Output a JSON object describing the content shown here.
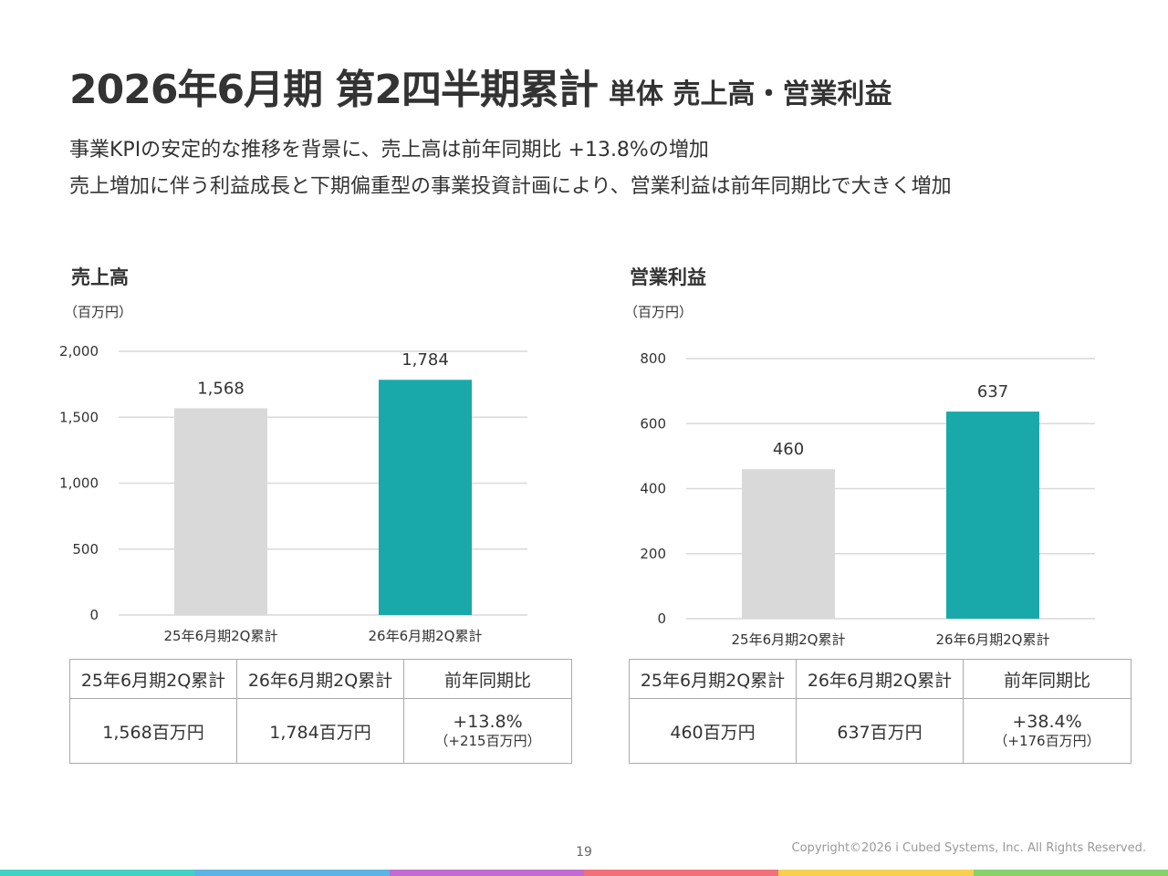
{
  "header": {
    "title": "2026年6月期 第2四半期累計",
    "subtitle": "単体 売上高・営業利益",
    "lead_lines": [
      "事業KPIの安定的な推移を背景に、売上高は前年同期比 +13.8%の増加",
      "売上増加に伴う利益成長と下期偏重型の事業投資計画により、営業利益は前年同期比で大きく増加"
    ]
  },
  "sections": [
    {
      "title": "売上高",
      "unit": "（百万円）",
      "table": {
        "headers": [
          "25年6月期2Q累計",
          "26年6月期2Q累計",
          "前年同期比"
        ],
        "values": [
          "1,568百万円",
          "1,784百万円"
        ],
        "yoy": "+13.8%",
        "yoy_detail": "（+215百万円）"
      }
    },
    {
      "title": "営業利益",
      "unit": "（百万円）",
      "table": {
        "headers": [
          "25年6月期2Q累計",
          "26年6月期2Q累計",
          "前年同期比"
        ],
        "values": [
          "460百万円",
          "637百万円"
        ],
        "yoy": "+38.4%",
        "yoy_detail": "（+176百万円）"
      }
    }
  ],
  "chart_data": [
    {
      "type": "bar",
      "title": "売上高",
      "categories": [
        "25年6月期2Q累計",
        "26年6月期2Q累計"
      ],
      "values": [
        1568,
        1784
      ],
      "value_labels": [
        "1,568",
        "1,784"
      ],
      "yticks": [
        0,
        500,
        1000,
        1500,
        2000
      ],
      "ytick_labels": [
        "0",
        "500",
        "1,000",
        "1,500",
        "2,000"
      ],
      "ylim": [
        0,
        2000
      ],
      "grid": true,
      "colors": [
        "#d9d9d9",
        "#1aa9aa"
      ]
    },
    {
      "type": "bar",
      "title": "営業利益",
      "categories": [
        "25年6月期2Q累計",
        "26年6月期2Q累計"
      ],
      "values": [
        460,
        637
      ],
      "value_labels": [
        "460",
        "637"
      ],
      "yticks": [
        0,
        200,
        400,
        600,
        800
      ],
      "ytick_labels": [
        "0",
        "200",
        "400",
        "600",
        "800"
      ],
      "ylim": [
        0,
        800
      ],
      "grid": true,
      "colors": [
        "#d9d9d9",
        "#1aa9aa"
      ]
    }
  ],
  "footer": {
    "page_number": "19",
    "copyright": "Copyright©2026 i Cubed Systems, Inc. All Rights Reserved.",
    "stripe_colors": [
      "#3fd3c3",
      "#5ab4e5",
      "#c36ad4",
      "#f2707a",
      "#f7d04c",
      "#88d26a"
    ]
  }
}
